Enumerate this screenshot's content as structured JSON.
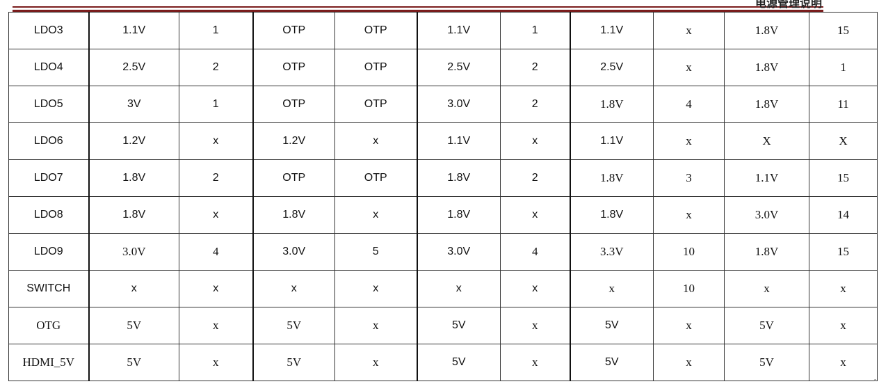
{
  "header_text": "电源管理说明",
  "rows": [
    [
      "LDO3",
      "1.1V",
      "1",
      "OTP",
      "OTP",
      "1.1V",
      "1",
      "1.1V",
      "x",
      "1.8V",
      "15"
    ],
    [
      "LDO4",
      "2.5V",
      "2",
      "OTP",
      "OTP",
      "2.5V",
      "2",
      "2.5V",
      "x",
      "1.8V",
      "1"
    ],
    [
      "LDO5",
      "3V",
      "1",
      "OTP",
      "OTP",
      "3.0V",
      "2",
      "1.8V",
      "4",
      "1.8V",
      "11"
    ],
    [
      "LDO6",
      "1.2V",
      "x",
      "1.2V",
      "x",
      "1.1V",
      "x",
      "1.1V",
      "x",
      "X",
      "X"
    ],
    [
      "LDO7",
      "1.8V",
      "2",
      "OTP",
      "OTP",
      "1.8V",
      "2",
      "1.8V",
      "3",
      "1.1V",
      "15"
    ],
    [
      "LDO8",
      "1.8V",
      "x",
      "1.8V",
      "x",
      "1.8V",
      "x",
      "1.8V",
      "x",
      "3.0V",
      "14"
    ],
    [
      "LDO9",
      "3.0V",
      "4",
      "3.0V",
      "5",
      "3.0V",
      "4",
      "3.3V",
      "10",
      "1.8V",
      "15"
    ],
    [
      "SWITCH",
      "x",
      "x",
      "x",
      "x",
      "x",
      "x",
      "x",
      "10",
      "x",
      "x"
    ],
    [
      "OTG",
      "5V",
      "x",
      "5V",
      "x",
      "5V",
      "x",
      "5V",
      "x",
      "5V",
      "x"
    ],
    [
      "HDMI_5V",
      "5V",
      "x",
      "5V",
      "x",
      "5V",
      "x",
      "5V",
      "x",
      "5V",
      "x"
    ]
  ]
}
